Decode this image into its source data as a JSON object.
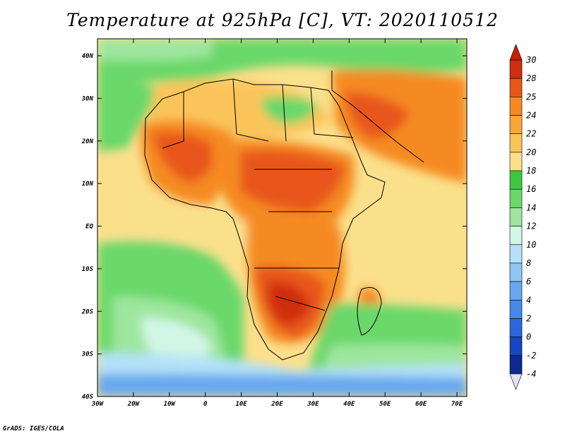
{
  "title": "Temperature at 925hPa [C], VT: 2020110512",
  "credit": "GrADS: IGES/COLA",
  "map": {
    "lat_labels": [
      "40N",
      "30N",
      "20N",
      "10N",
      "EQ",
      "10S",
      "20S",
      "30S",
      "40S"
    ],
    "lon_labels": [
      "30W",
      "20W",
      "10W",
      "0",
      "10E",
      "20E",
      "30E",
      "40E",
      "50E",
      "60E",
      "70E"
    ]
  },
  "colorbar": {
    "labels": [
      "30",
      "28",
      "25",
      "24",
      "22",
      "20",
      "18",
      "16",
      "14",
      "12",
      "10",
      "8",
      "6",
      "4",
      "2",
      "0",
      "-2",
      "-4"
    ],
    "colors": [
      "#cf2e10",
      "#e8571a",
      "#f58a24",
      "#f8a73a",
      "#fbc45a",
      "#fbe08c",
      "#3ec83e",
      "#6ad86a",
      "#9ee69e",
      "#d2f6e6",
      "#b4e1f8",
      "#8ec6f4",
      "#68a8ee",
      "#4888e6",
      "#2c68dc",
      "#1846c0",
      "#0c2a90"
    ],
    "top_color": "#c81e0a",
    "bottom_color": "#e2e2f8"
  }
}
